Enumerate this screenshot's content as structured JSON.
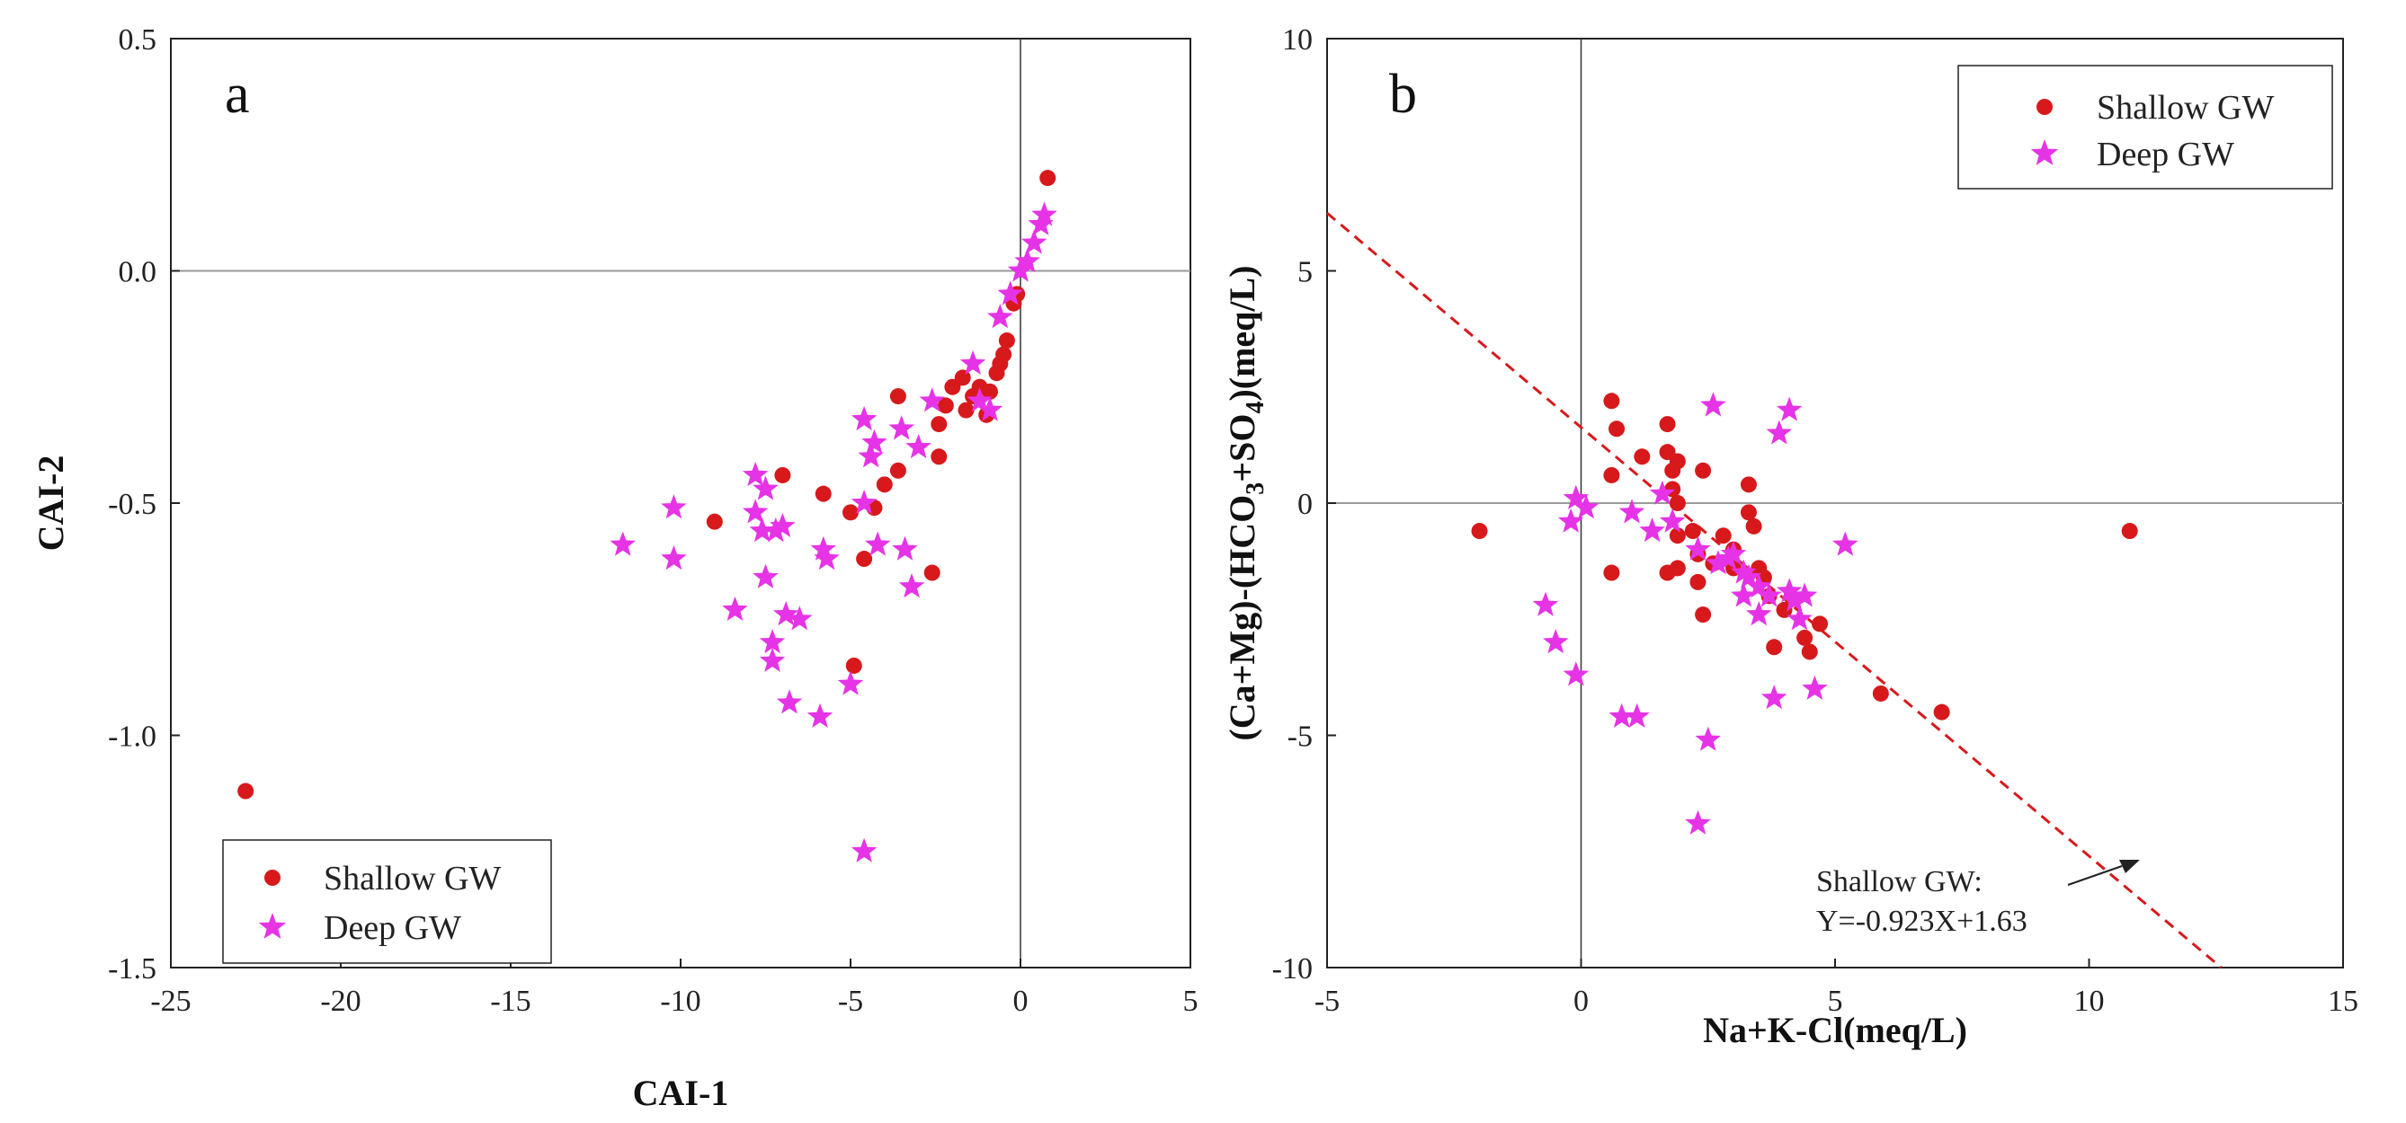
{
  "colors": {
    "shallow": "#d7191c",
    "deep": "#e633e6",
    "fitline": "#d7191c",
    "refline": "#999999"
  },
  "chart_data": [
    {
      "type": "scatter",
      "panel_label": "a",
      "xlabel": "CAI-1",
      "ylabel": "CAI-2",
      "xlim": [
        -25,
        5
      ],
      "ylim": [
        -1.5,
        0.5
      ],
      "xticks": [
        "-25",
        "-20",
        "-15",
        "-10",
        "-5",
        "0",
        "5"
      ],
      "yticks": [
        "0.5",
        "0.0",
        "-0.5",
        "-1.0",
        "-1.5"
      ],
      "reference_lines": {
        "x": 0,
        "y": 0
      },
      "legend": {
        "position": "bottom-left",
        "entries": [
          "Shallow GW",
          "Deep GW"
        ]
      },
      "series": [
        {
          "name": "Shallow GW",
          "marker": "circle",
          "points": [
            [
              -22.8,
              -1.12
            ],
            [
              -9.0,
              -0.54
            ],
            [
              -7.0,
              -0.44
            ],
            [
              -5.8,
              -0.48
            ],
            [
              -5.0,
              -0.52
            ],
            [
              -4.6,
              -0.62
            ],
            [
              -4.9,
              -0.85
            ],
            [
              -4.3,
              -0.51
            ],
            [
              -4.0,
              -0.46
            ],
            [
              -3.6,
              -0.43
            ],
            [
              -3.6,
              -0.27
            ],
            [
              -2.6,
              -0.65
            ],
            [
              -2.4,
              -0.4
            ],
            [
              -2.4,
              -0.33
            ],
            [
              -2.2,
              -0.29
            ],
            [
              -2.0,
              -0.25
            ],
            [
              -1.7,
              -0.23
            ],
            [
              -1.6,
              -0.3
            ],
            [
              -1.4,
              -0.27
            ],
            [
              -1.2,
              -0.25
            ],
            [
              -1.0,
              -0.31
            ],
            [
              -0.9,
              -0.26
            ],
            [
              -0.7,
              -0.22
            ],
            [
              -0.6,
              -0.2
            ],
            [
              -0.5,
              -0.18
            ],
            [
              -0.4,
              -0.15
            ],
            [
              -0.2,
              -0.07
            ],
            [
              -0.1,
              -0.05
            ],
            [
              0.8,
              0.2
            ]
          ]
        },
        {
          "name": "Deep GW",
          "marker": "star",
          "points": [
            [
              -11.7,
              -0.59
            ],
            [
              -10.2,
              -0.51
            ],
            [
              -10.2,
              -0.62
            ],
            [
              -8.4,
              -0.73
            ],
            [
              -7.8,
              -0.44
            ],
            [
              -7.8,
              -0.52
            ],
            [
              -7.5,
              -0.47
            ],
            [
              -7.6,
              -0.56
            ],
            [
              -7.5,
              -0.66
            ],
            [
              -7.2,
              -0.56
            ],
            [
              -7.0,
              -0.55
            ],
            [
              -7.3,
              -0.8
            ],
            [
              -7.3,
              -0.84
            ],
            [
              -6.9,
              -0.74
            ],
            [
              -6.8,
              -0.93
            ],
            [
              -6.5,
              -0.75
            ],
            [
              -5.9,
              -0.96
            ],
            [
              -5.8,
              -0.6
            ],
            [
              -5.7,
              -0.62
            ],
            [
              -5.0,
              -0.89
            ],
            [
              -4.6,
              -0.32
            ],
            [
              -4.6,
              -0.5
            ],
            [
              -4.4,
              -0.4
            ],
            [
              -4.3,
              -0.37
            ],
            [
              -4.2,
              -0.59
            ],
            [
              -3.5,
              -0.34
            ],
            [
              -3.4,
              -0.6
            ],
            [
              -3.2,
              -0.68
            ],
            [
              -3.0,
              -0.38
            ],
            [
              -2.6,
              -0.28
            ],
            [
              -4.6,
              -1.25
            ],
            [
              -1.4,
              -0.2
            ],
            [
              -1.2,
              -0.28
            ],
            [
              -0.9,
              -0.3
            ],
            [
              -0.6,
              -0.1
            ],
            [
              -0.3,
              -0.05
            ],
            [
              0.0,
              0.0
            ],
            [
              0.2,
              0.02
            ],
            [
              0.4,
              0.06
            ],
            [
              0.6,
              0.1
            ],
            [
              0.7,
              0.12
            ]
          ]
        }
      ]
    },
    {
      "type": "scatter",
      "panel_label": "b",
      "xlabel": "Na+K-Cl(meq/L)",
      "ylabel_parts": [
        "(Ca+Mg)-(HCO",
        "3",
        "+SO",
        "4",
        ")(meq/L)"
      ],
      "xlim": [
        -5,
        15
      ],
      "ylim": [
        -10,
        10
      ],
      "xticks": [
        "-5",
        "0",
        "5",
        "10",
        "15"
      ],
      "yticks": [
        "10",
        "5",
        "0",
        "-5",
        "-10"
      ],
      "reference_lines": {
        "x": 0,
        "y": 0
      },
      "legend": {
        "position": "top-right",
        "entries": [
          "Shallow GW",
          "Deep GW"
        ]
      },
      "fit_line": {
        "slope": -0.923,
        "intercept": 1.63,
        "x_range": [
          -5,
          12.6
        ]
      },
      "annotation": {
        "lines": [
          "Shallow GW:",
          "Y=-0.923X+1.63"
        ],
        "arrow_to": [
          10.3,
          -8.0
        ]
      },
      "series": [
        {
          "name": "Shallow GW",
          "marker": "circle",
          "points": [
            [
              -2.0,
              -0.6
            ],
            [
              0.6,
              2.2
            ],
            [
              0.7,
              1.6
            ],
            [
              0.6,
              0.6
            ],
            [
              0.6,
              -1.5
            ],
            [
              1.2,
              1.0
            ],
            [
              1.7,
              1.7
            ],
            [
              1.7,
              1.1
            ],
            [
              1.9,
              0.9
            ],
            [
              1.8,
              0.7
            ],
            [
              1.8,
              0.3
            ],
            [
              1.9,
              -0.0
            ],
            [
              1.9,
              -0.7
            ],
            [
              1.9,
              -1.4
            ],
            [
              1.7,
              -1.5
            ],
            [
              2.2,
              -0.6
            ],
            [
              2.3,
              -1.1
            ],
            [
              2.3,
              -1.7
            ],
            [
              2.4,
              -2.4
            ],
            [
              2.4,
              0.7
            ],
            [
              2.6,
              -1.3
            ],
            [
              2.8,
              -0.7
            ],
            [
              3.0,
              -1.0
            ],
            [
              3.0,
              -1.4
            ],
            [
              3.3,
              0.4
            ],
            [
              3.3,
              -0.2
            ],
            [
              3.4,
              -0.5
            ],
            [
              3.5,
              -1.4
            ],
            [
              3.6,
              -1.6
            ],
            [
              3.7,
              -2.0
            ],
            [
              3.8,
              -3.1
            ],
            [
              4.0,
              -2.3
            ],
            [
              4.4,
              -2.9
            ],
            [
              4.5,
              -3.2
            ],
            [
              4.7,
              -2.6
            ],
            [
              5.9,
              -4.1
            ],
            [
              7.1,
              -4.5
            ],
            [
              10.8,
              -0.6
            ]
          ]
        },
        {
          "name": "Deep GW",
          "marker": "star",
          "points": [
            [
              -0.7,
              -2.2
            ],
            [
              -0.5,
              -3.0
            ],
            [
              -0.2,
              -0.4
            ],
            [
              -0.1,
              0.1
            ],
            [
              0.1,
              -0.1
            ],
            [
              -0.1,
              -3.7
            ],
            [
              0.8,
              -4.6
            ],
            [
              1.1,
              -4.6
            ],
            [
              1.0,
              -0.2
            ],
            [
              1.4,
              -0.6
            ],
            [
              1.6,
              0.2
            ],
            [
              1.8,
              -0.4
            ],
            [
              2.3,
              -1.0
            ],
            [
              2.6,
              2.1
            ],
            [
              2.7,
              -1.3
            ],
            [
              2.9,
              -1.2
            ],
            [
              3.0,
              -1.1
            ],
            [
              3.2,
              -1.5
            ],
            [
              3.2,
              -2.0
            ],
            [
              3.3,
              -1.6
            ],
            [
              3.5,
              -1.8
            ],
            [
              3.5,
              -2.4
            ],
            [
              3.7,
              -2.0
            ],
            [
              3.9,
              1.5
            ],
            [
              4.1,
              2.0
            ],
            [
              4.1,
              -1.9
            ],
            [
              4.2,
              -2.1
            ],
            [
              4.3,
              -2.5
            ],
            [
              4.4,
              -2.0
            ],
            [
              3.8,
              -4.2
            ],
            [
              4.6,
              -4.0
            ],
            [
              5.2,
              -0.9
            ],
            [
              2.5,
              -5.1
            ],
            [
              2.3,
              -6.9
            ]
          ]
        }
      ]
    }
  ]
}
